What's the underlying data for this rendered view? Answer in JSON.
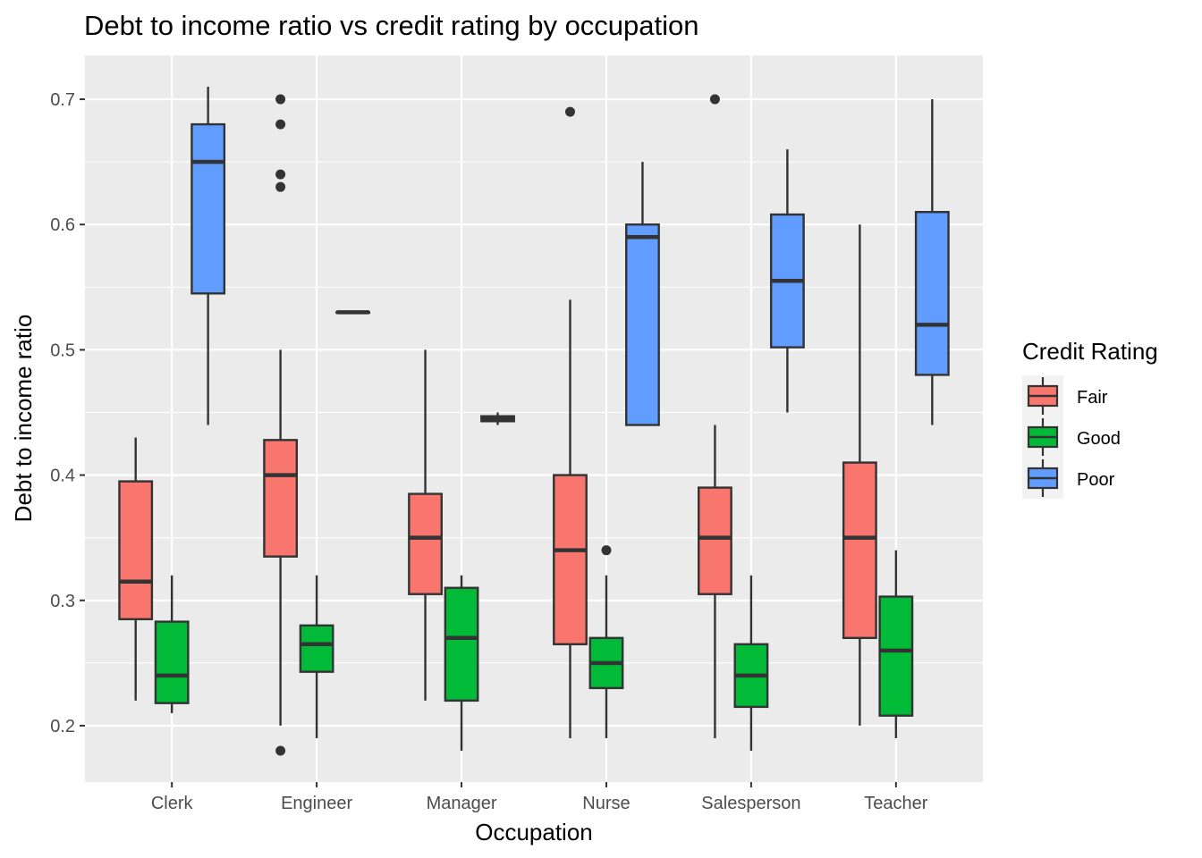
{
  "chart_data": {
    "type": "boxplot",
    "title": "Debt to income ratio vs credit rating by occupation",
    "xlabel": "Occupation",
    "ylabel": "Debt to income ratio",
    "ylim": [
      0.155,
      0.735
    ],
    "yticks": [
      0.2,
      0.3,
      0.4,
      0.5,
      0.6,
      0.7
    ],
    "ytick_labels": [
      "0.2",
      "0.3",
      "0.4",
      "0.5",
      "0.6",
      "0.7"
    ],
    "categories": [
      "Clerk",
      "Engineer",
      "Manager",
      "Nurse",
      "Salesperson",
      "Teacher"
    ],
    "grid": true,
    "legend": {
      "title": "Credit Rating",
      "position": "right",
      "entries": [
        "Fair",
        "Good",
        "Poor"
      ]
    },
    "colors": {
      "Fair": "#F8766D",
      "Good": "#00BA38",
      "Poor": "#619CFF",
      "panel": "#EBEBEB",
      "grid": "#FFFFFF",
      "box_line": "#333333"
    },
    "series": [
      {
        "name": "Fair",
        "boxes": [
          {
            "category": "Clerk",
            "min": 0.22,
            "q1": 0.285,
            "median": 0.315,
            "q3": 0.395,
            "max": 0.43,
            "outliers": []
          },
          {
            "category": "Engineer",
            "min": 0.2,
            "q1": 0.335,
            "median": 0.4,
            "q3": 0.428,
            "max": 0.5,
            "outliers": [
              0.18,
              0.63,
              0.64,
              0.68,
              0.7
            ]
          },
          {
            "category": "Manager",
            "min": 0.22,
            "q1": 0.305,
            "median": 0.35,
            "q3": 0.385,
            "max": 0.5,
            "outliers": []
          },
          {
            "category": "Nurse",
            "min": 0.19,
            "q1": 0.265,
            "median": 0.34,
            "q3": 0.4,
            "max": 0.54,
            "outliers": [
              0.69
            ]
          },
          {
            "category": "Salesperson",
            "min": 0.19,
            "q1": 0.305,
            "median": 0.35,
            "q3": 0.39,
            "max": 0.44,
            "outliers": [
              0.7
            ]
          },
          {
            "category": "Teacher",
            "min": 0.2,
            "q1": 0.27,
            "median": 0.35,
            "q3": 0.41,
            "max": 0.6,
            "outliers": []
          }
        ]
      },
      {
        "name": "Good",
        "boxes": [
          {
            "category": "Clerk",
            "min": 0.21,
            "q1": 0.218,
            "median": 0.24,
            "q3": 0.283,
            "max": 0.32,
            "outliers": []
          },
          {
            "category": "Engineer",
            "min": 0.19,
            "q1": 0.243,
            "median": 0.265,
            "q3": 0.28,
            "max": 0.32,
            "outliers": []
          },
          {
            "category": "Manager",
            "min": 0.18,
            "q1": 0.22,
            "median": 0.27,
            "q3": 0.31,
            "max": 0.32,
            "outliers": []
          },
          {
            "category": "Nurse",
            "min": 0.19,
            "q1": 0.23,
            "median": 0.25,
            "q3": 0.27,
            "max": 0.32,
            "outliers": [
              0.34
            ]
          },
          {
            "category": "Salesperson",
            "min": 0.18,
            "q1": 0.215,
            "median": 0.24,
            "q3": 0.265,
            "max": 0.32,
            "outliers": []
          },
          {
            "category": "Teacher",
            "min": 0.19,
            "q1": 0.208,
            "median": 0.26,
            "q3": 0.303,
            "max": 0.34,
            "outliers": []
          }
        ]
      },
      {
        "name": "Poor",
        "boxes": [
          {
            "category": "Clerk",
            "min": 0.44,
            "q1": 0.545,
            "median": 0.65,
            "q3": 0.68,
            "max": 0.71,
            "outliers": []
          },
          {
            "category": "Engineer",
            "min": 0.53,
            "q1": 0.53,
            "median": 0.53,
            "q3": 0.53,
            "max": 0.53,
            "outliers": []
          },
          {
            "category": "Manager",
            "min": 0.44,
            "q1": 0.443,
            "median": 0.445,
            "q3": 0.447,
            "max": 0.45,
            "outliers": []
          },
          {
            "category": "Nurse",
            "min": 0.44,
            "q1": 0.44,
            "median": 0.59,
            "q3": 0.6,
            "max": 0.65,
            "outliers": []
          },
          {
            "category": "Salesperson",
            "min": 0.45,
            "q1": 0.502,
            "median": 0.555,
            "q3": 0.608,
            "max": 0.66,
            "outliers": []
          },
          {
            "category": "Teacher",
            "min": 0.44,
            "q1": 0.48,
            "median": 0.52,
            "q3": 0.61,
            "max": 0.7,
            "outliers": []
          }
        ]
      }
    ]
  }
}
